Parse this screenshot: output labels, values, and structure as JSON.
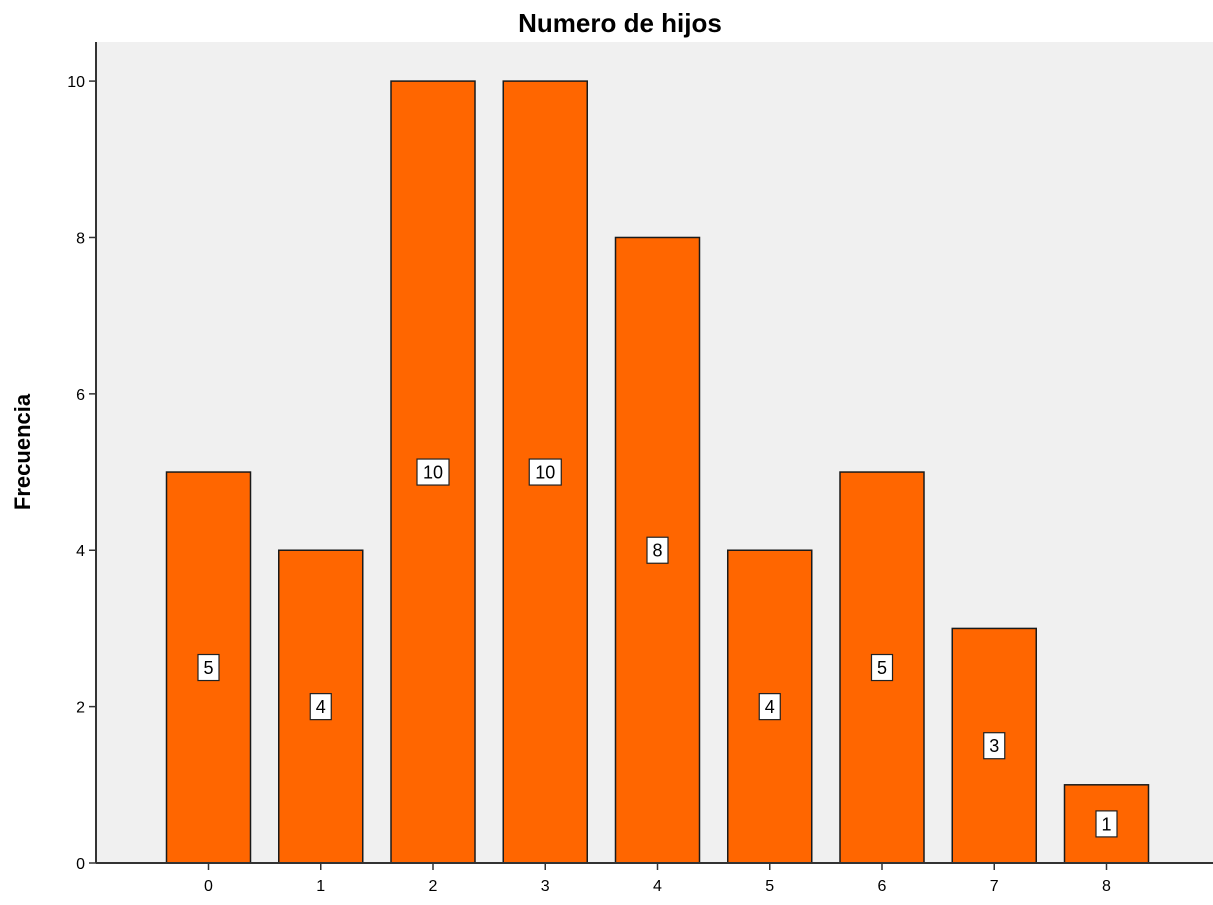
{
  "chart_data": {
    "type": "bar",
    "title": "Numero de hijos",
    "xlabel": "",
    "ylabel": "Frecuencia",
    "categories": [
      "0",
      "1",
      "2",
      "3",
      "4",
      "5",
      "6",
      "7",
      "8"
    ],
    "values": [
      5,
      4,
      10,
      10,
      8,
      4,
      5,
      3,
      1
    ],
    "ylim": [
      0,
      10.5
    ],
    "yticks": [
      0,
      2,
      4,
      6,
      8,
      10
    ],
    "grid": false,
    "legend": "none",
    "data_labels": true
  },
  "colors": {
    "bar_fill": "#ff6600",
    "bar_stroke": "#1a1a1a",
    "plot_background": "#f0f0f0",
    "label_box": "#ffffff"
  }
}
